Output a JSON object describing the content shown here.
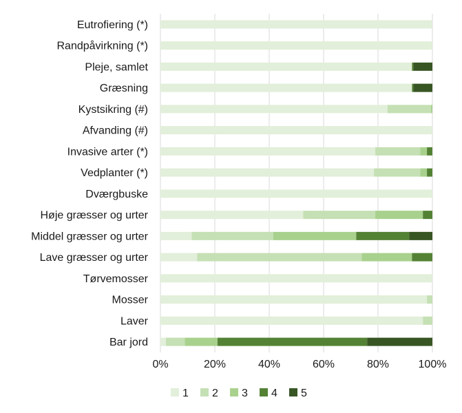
{
  "chart_data": {
    "type": "bar",
    "orientation": "horizontal",
    "stacked": "percent",
    "title": "",
    "xlabel": "",
    "ylabel": "",
    "xlim": [
      0,
      100
    ],
    "x_ticks": [
      "0%",
      "20%",
      "40%",
      "60%",
      "80%",
      "100%"
    ],
    "grid": true,
    "legend_position": "bottom",
    "categories": [
      "Eutrofiering (*)",
      "Randpåvirkning (*)",
      "Pleje, samlet",
      "Græsning",
      "Kystsikring (#)",
      "Afvanding (#)",
      "Invasive arter (*)",
      "Vedplanter (*)",
      "Dværgbuske",
      "Høje græsser og urter",
      "Middel græsser og urter",
      "Lave græsser og urter",
      "Tørvemosser",
      "Mosser",
      "Laver",
      "Bar jord"
    ],
    "series": [
      {
        "name": "1",
        "color": "#e2efda",
        "values": [
          100,
          100,
          92.5,
          92.5,
          83.5,
          100,
          79,
          78.5,
          100,
          52.5,
          11.5,
          13.5,
          100,
          98,
          96.5,
          2
        ]
      },
      {
        "name": "2",
        "color": "#c5e0b4",
        "values": [
          0,
          0,
          0,
          0,
          16,
          0,
          16.5,
          17,
          0,
          26.5,
          30,
          60.5,
          0,
          2,
          3.5,
          7
        ]
      },
      {
        "name": "3",
        "color": "#a9d18e",
        "values": [
          0,
          0,
          0,
          0,
          0.5,
          0,
          2.5,
          2.5,
          0,
          17.5,
          30.5,
          18.5,
          0,
          0,
          0,
          12
        ]
      },
      {
        "name": "4",
        "color": "#548235",
        "values": [
          0,
          0,
          0.5,
          0.5,
          0,
          0,
          2,
          2,
          0,
          3.5,
          19.5,
          7.5,
          0,
          0,
          0,
          55
        ]
      },
      {
        "name": "5",
        "color": "#375623",
        "values": [
          0,
          0,
          7,
          7,
          0,
          0,
          0,
          0,
          0,
          0,
          8.5,
          0,
          0,
          0,
          0,
          24
        ]
      }
    ]
  }
}
